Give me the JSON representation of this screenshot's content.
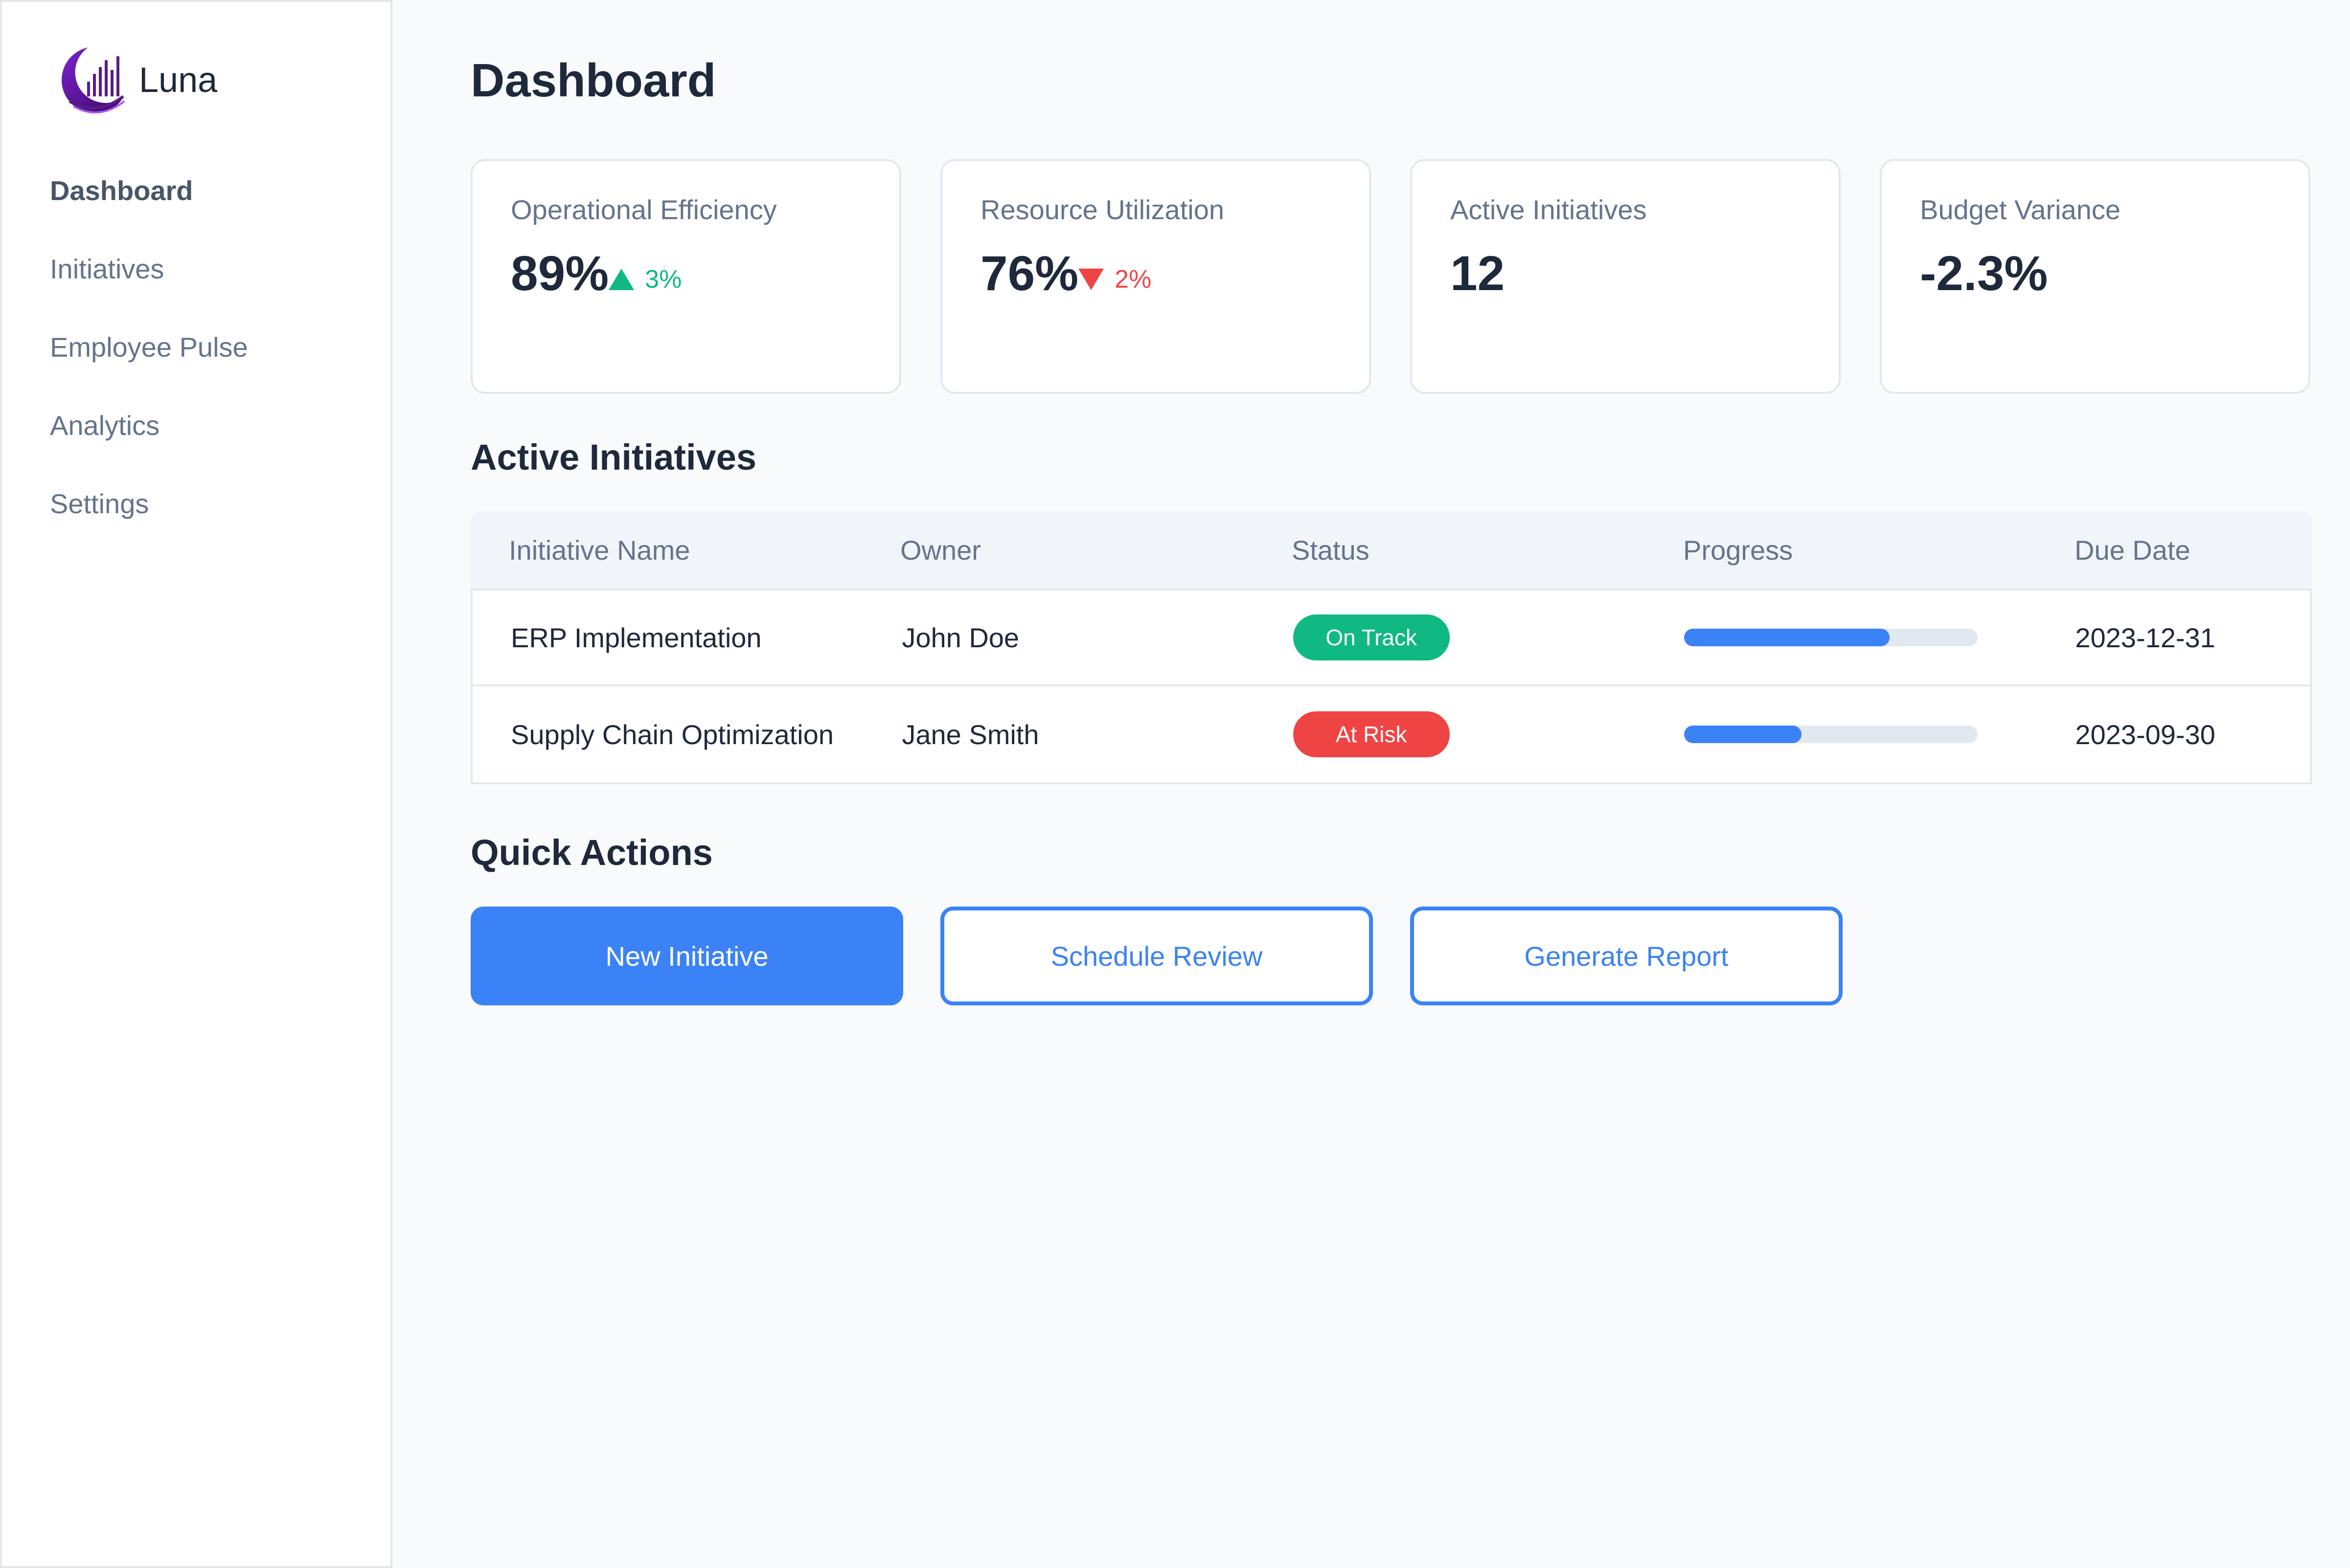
{
  "brand": {
    "name": "Luna",
    "logo_icon": "luna-logo-icon",
    "accent": "#6b21a8"
  },
  "sidebar": {
    "items": [
      {
        "label": "Dashboard",
        "active": true
      },
      {
        "label": "Initiatives",
        "active": false
      },
      {
        "label": "Employee Pulse",
        "active": false
      },
      {
        "label": "Analytics",
        "active": false
      },
      {
        "label": "Settings",
        "active": false
      }
    ]
  },
  "page": {
    "title": "Dashboard"
  },
  "metrics": [
    {
      "label": "Operational Efficiency",
      "value": "89%",
      "trend": "3%",
      "trend_direction": "up",
      "trend_color": "#10b981"
    },
    {
      "label": "Resource Utilization",
      "value": "76%",
      "trend": "2%",
      "trend_direction": "down",
      "trend_color": "#ef4444"
    },
    {
      "label": "Active Initiatives",
      "value": "12"
    },
    {
      "label": "Budget Variance",
      "value": "-2.3%"
    }
  ],
  "initiatives": {
    "title": "Active Initiatives",
    "columns": [
      "Initiative Name",
      "Owner",
      "Status",
      "Progress",
      "Due Date"
    ],
    "rows": [
      {
        "name": "ERP Implementation",
        "owner": "John Doe",
        "status": "On Track",
        "status_color": "#10b981",
        "progress": 0.7,
        "due": "2023-12-31"
      },
      {
        "name": "Supply Chain Optimization",
        "owner": "Jane Smith",
        "status": "At Risk",
        "status_color": "#ef4444",
        "progress": 0.4,
        "due": "2023-09-30"
      }
    ]
  },
  "quick_actions": {
    "title": "Quick Actions",
    "buttons": [
      {
        "label": "New Initiative",
        "style": "primary"
      },
      {
        "label": "Schedule Review",
        "style": "outline"
      },
      {
        "label": "Generate Report",
        "style": "outline"
      }
    ]
  },
  "colors": {
    "primary": "#3b82f6",
    "success": "#10b981",
    "danger": "#ef4444"
  }
}
